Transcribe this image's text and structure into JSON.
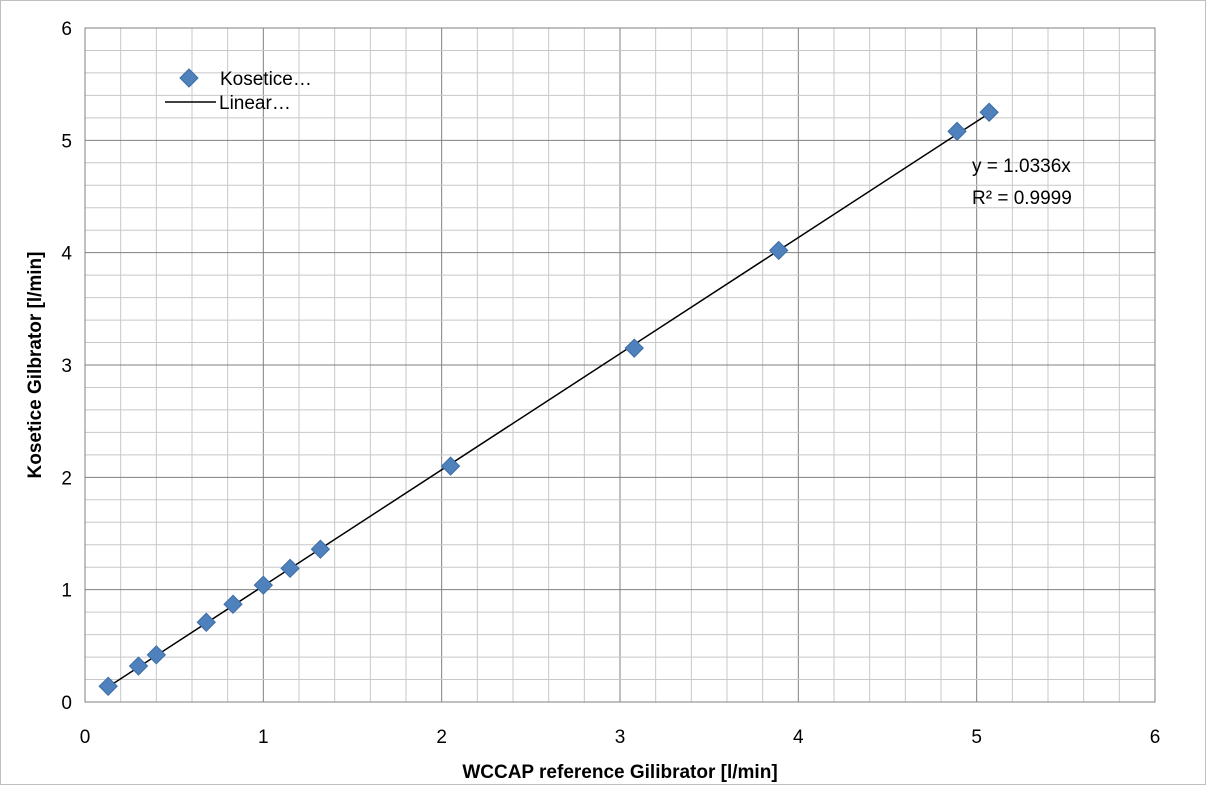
{
  "chart_data": {
    "type": "scatter",
    "title": "",
    "xlabel": "WCCAP reference Gilibrator [l/min]",
    "ylabel": "Kosetice Gilbrator [l/min]",
    "xlim": [
      0,
      6
    ],
    "ylim": [
      0,
      6
    ],
    "x_ticks": [
      "0",
      "1",
      "2",
      "3",
      "4",
      "5",
      "6"
    ],
    "y_ticks": [
      "0",
      "1",
      "2",
      "3",
      "4",
      "5",
      "6"
    ],
    "grid": {
      "major_step": 1,
      "minor_step": 0.2,
      "visible": true
    },
    "legend": {
      "placement": "top-left"
    },
    "series": [
      {
        "name": "Kosetice…",
        "kind": "markers",
        "marker": "diamond",
        "color": "#4F81BD",
        "x": [
          0.13,
          0.3,
          0.4,
          0.68,
          0.83,
          1.0,
          1.15,
          1.32,
          2.05,
          3.08,
          3.89,
          4.89,
          5.07
        ],
        "y": [
          0.14,
          0.32,
          0.42,
          0.71,
          0.87,
          1.04,
          1.19,
          1.36,
          2.1,
          3.15,
          4.02,
          5.08,
          5.25
        ]
      },
      {
        "name": "Linear…",
        "kind": "line",
        "color": "#000000",
        "x": [
          0.13,
          5.07
        ],
        "y": [
          0.1344,
          5.2404
        ]
      }
    ],
    "annotations": {
      "equation": "y = 1.0336x",
      "r_squared": "R² = 0.9999"
    }
  }
}
